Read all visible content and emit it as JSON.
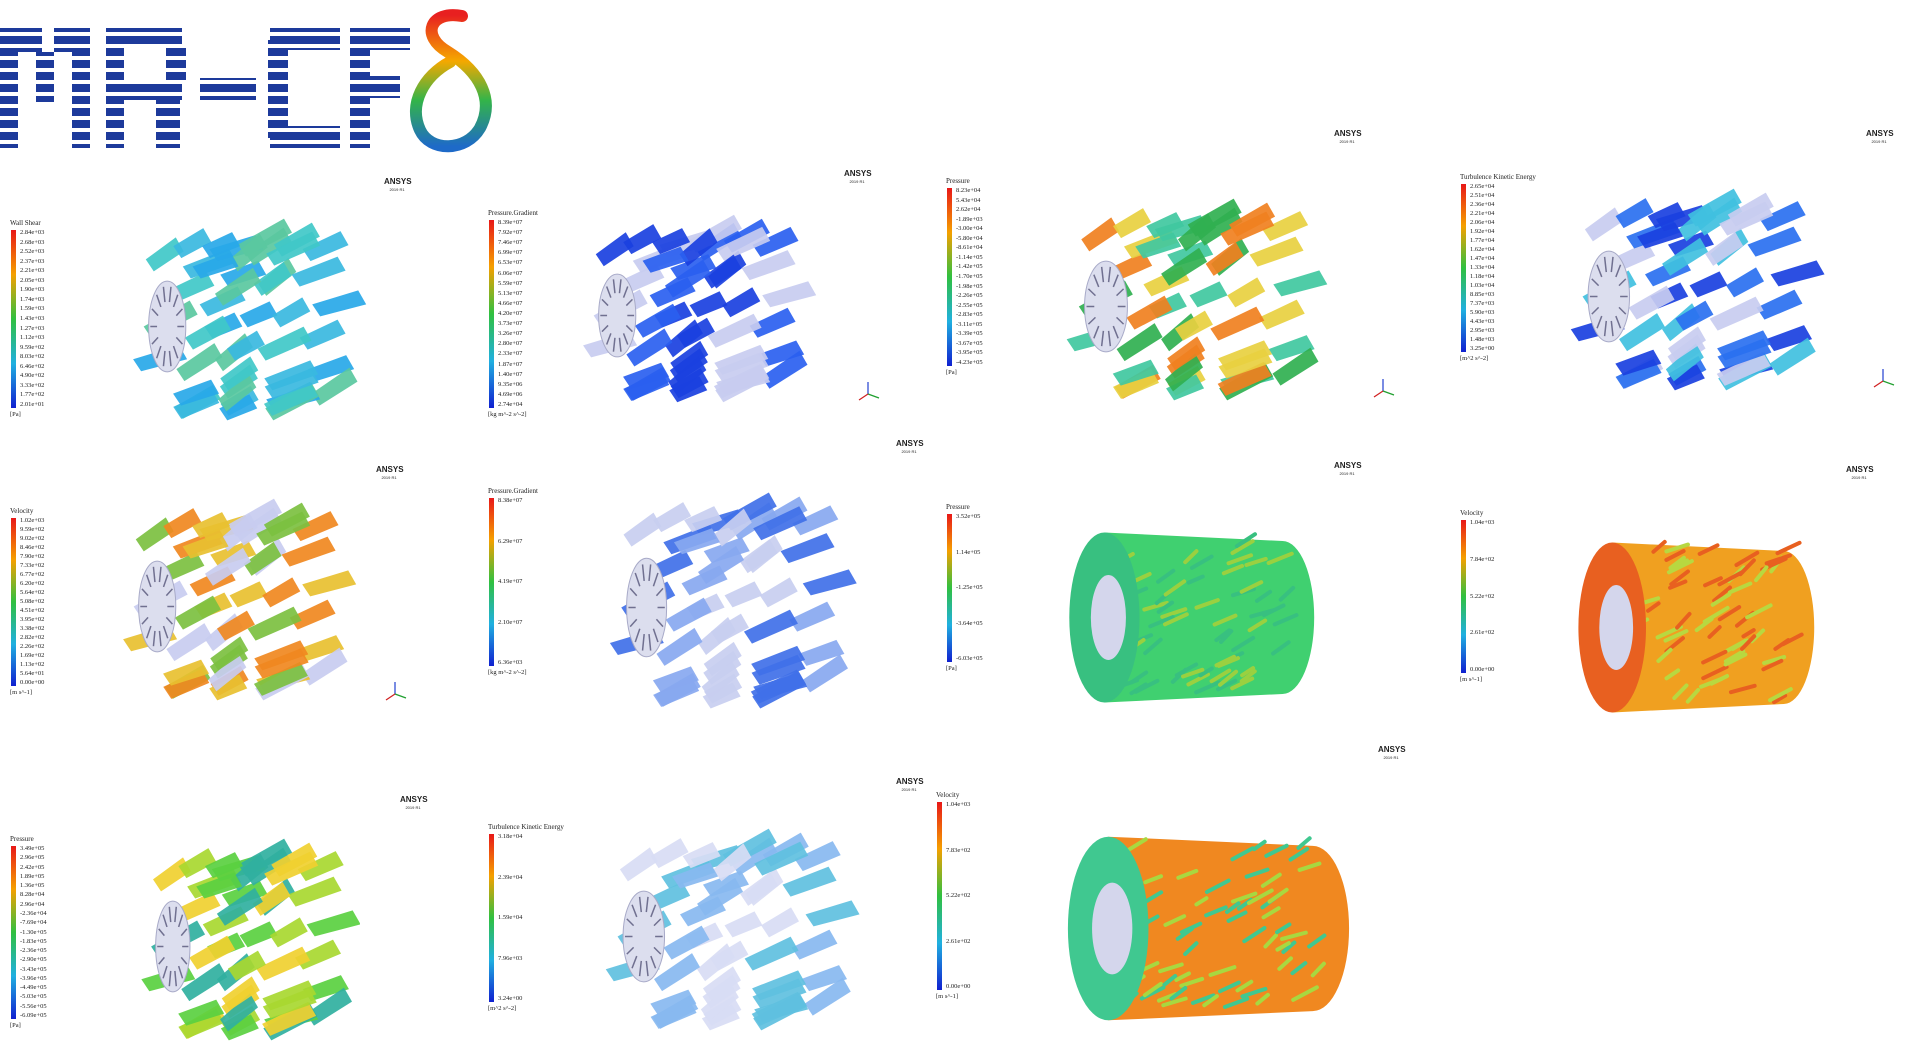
{
  "logo_text": "MR-CFD",
  "ansys_label": "ANSYS",
  "ansys_version": "2019 R1",
  "panels": [
    {
      "legend_title": "Wall Shear",
      "ticks": [
        "2.84e+03",
        "2.68e+03",
        "2.52e+03",
        "2.37e+03",
        "2.21e+03",
        "2.05e+03",
        "1.90e+03",
        "1.74e+03",
        "1.59e+03",
        "1.43e+03",
        "1.27e+03",
        "1.12e+03",
        "9.59e+02",
        "8.03e+02",
        "6.46e+02",
        "4.90e+02",
        "3.33e+02",
        "1.77e+02",
        "2.01e+01"
      ],
      "unit": "[Pa]"
    },
    {
      "legend_title": "Pressure.Gradient",
      "ticks": [
        "8.39e+07",
        "7.92e+07",
        "7.46e+07",
        "6.99e+07",
        "6.53e+07",
        "6.06e+07",
        "5.59e+07",
        "5.13e+07",
        "4.66e+07",
        "4.20e+07",
        "3.73e+07",
        "3.26e+07",
        "2.80e+07",
        "2.33e+07",
        "1.87e+07",
        "1.40e+07",
        "9.35e+06",
        "4.69e+06",
        "2.74e+04"
      ],
      "unit": "[kg m^-2 s^-2]"
    },
    {
      "legend_title": "Pressure",
      "ticks": [
        "8.23e+04",
        "5.43e+04",
        "2.62e+04",
        "-1.89e+03",
        "-3.00e+04",
        "-5.80e+04",
        "-8.61e+04",
        "-1.14e+05",
        "-1.42e+05",
        "-1.70e+05",
        "-1.98e+05",
        "-2.26e+05",
        "-2.55e+05",
        "-2.83e+05",
        "-3.11e+05",
        "-3.39e+05",
        "-3.67e+05",
        "-3.95e+05",
        "-4.23e+05"
      ],
      "unit": "[Pa]"
    },
    {
      "legend_title": "Turbulence Kinetic Energy",
      "ticks": [
        "2.65e+04",
        "2.51e+04",
        "2.36e+04",
        "2.21e+04",
        "2.06e+04",
        "1.92e+04",
        "1.77e+04",
        "1.62e+04",
        "1.47e+04",
        "1.33e+04",
        "1.18e+04",
        "1.03e+04",
        "8.85e+03",
        "7.37e+03",
        "5.90e+03",
        "4.43e+03",
        "2.95e+03",
        "1.48e+03",
        "3.25e+00"
      ],
      "unit": "[m^2 s^-2]"
    },
    {
      "legend_title": "Velocity",
      "ticks": [
        "1.02e+03",
        "9.59e+02",
        "9.02e+02",
        "8.46e+02",
        "7.90e+02",
        "7.33e+02",
        "6.77e+02",
        "6.20e+02",
        "5.64e+02",
        "5.08e+02",
        "4.51e+02",
        "3.95e+02",
        "3.38e+02",
        "2.82e+02",
        "2.26e+02",
        "1.69e+02",
        "1.13e+02",
        "5.64e+01",
        "0.00e+00"
      ],
      "unit": "[m s^-1]"
    },
    {
      "legend_title": "Pressure.Gradient",
      "ticks": [
        "8.38e+07",
        "6.29e+07",
        "4.19e+07",
        "2.10e+07",
        "6.36e+03"
      ],
      "unit": "[kg m^-2 s^-2]"
    },
    {
      "legend_title": "Pressure",
      "ticks": [
        "3.52e+05",
        "1.14e+05",
        "-1.25e+05",
        "-3.64e+05",
        "-6.03e+05"
      ],
      "unit": "[Pa]"
    },
    {
      "legend_title": "Velocity",
      "ticks": [
        "1.04e+03",
        "7.84e+02",
        "5.22e+02",
        "2.61e+02",
        "0.00e+00"
      ],
      "unit": "[m s^-1]"
    },
    {
      "legend_title": "Pressure",
      "ticks": [
        "3.49e+05",
        "2.96e+05",
        "2.42e+05",
        "1.89e+05",
        "1.36e+05",
        "8.28e+04",
        "2.96e+04",
        "-2.36e+04",
        "-7.69e+04",
        "-1.30e+05",
        "-1.83e+05",
        "-2.36e+05",
        "-2.90e+05",
        "-3.43e+05",
        "-3.96e+05",
        "-4.49e+05",
        "-5.03e+05",
        "-5.56e+05",
        "-6.09e+05"
      ],
      "unit": "[Pa]"
    },
    {
      "legend_title": "Turbulence Kinetic Energy",
      "ticks": [
        "3.18e+04",
        "2.39e+04",
        "1.59e+04",
        "7.96e+03",
        "3.24e+00"
      ],
      "unit": "[m^2 s^-2]"
    },
    {
      "legend_title": "Velocity",
      "ticks": [
        "1.04e+03",
        "7.83e+02",
        "5.22e+02",
        "2.61e+02",
        "0.00e+00"
      ],
      "unit": "[m s^-1]"
    }
  ]
}
